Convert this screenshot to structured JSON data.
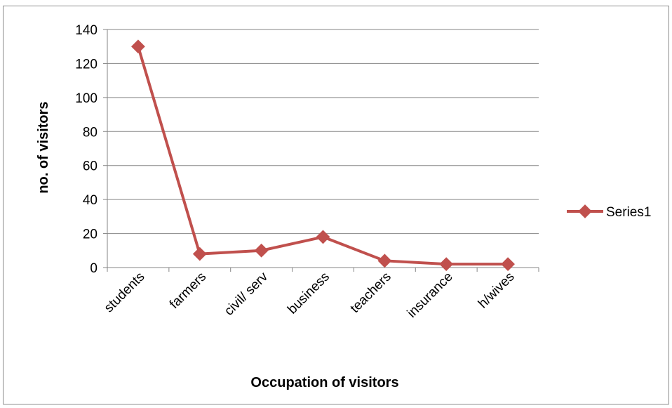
{
  "chart_data": {
    "type": "line",
    "categories": [
      "students",
      "farmers",
      "civil/ serv",
      "business",
      "teachers",
      "insurance",
      "h/wives"
    ],
    "series": [
      {
        "name": "Series1",
        "values": [
          130,
          8,
          10,
          18,
          4,
          2,
          2
        ],
        "color": "#c0504d"
      }
    ],
    "xlabel": "Occupation of visitors",
    "ylabel": "no. of visitors",
    "ylim": [
      0,
      140
    ],
    "yticks": [
      "0",
      "20",
      "40",
      "60",
      "80",
      "100",
      "120",
      "140"
    ],
    "grid": true,
    "legend": "right",
    "gridline_color": "#868686"
  }
}
